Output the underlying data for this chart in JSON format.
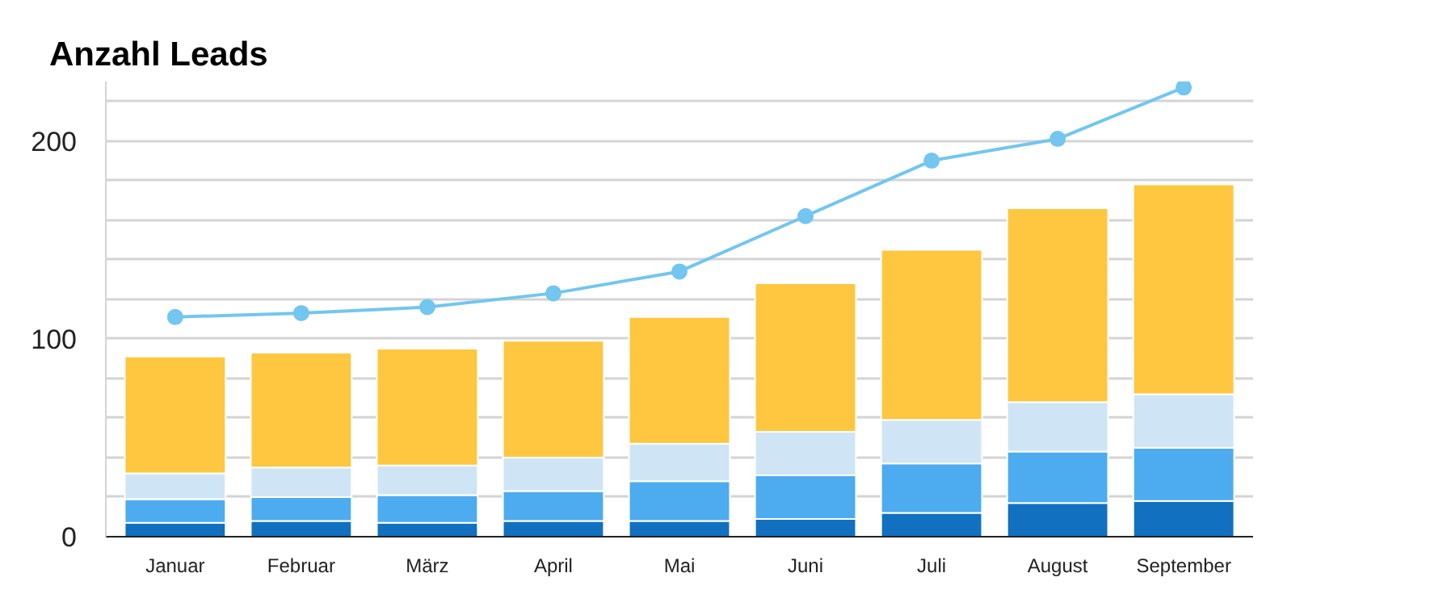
{
  "chart_data": {
    "type": "bar",
    "title": "Anzahl Leads",
    "stacked": true,
    "categories": [
      "Januar",
      "Februar",
      "März",
      "April",
      "Mai",
      "Juni",
      "Juli",
      "August",
      "September"
    ],
    "series": [
      {
        "color": "#1170c0",
        "values": [
          7,
          8,
          7,
          8,
          8,
          9,
          12,
          17,
          18
        ]
      },
      {
        "color": "#4dabf0",
        "values": [
          12,
          12,
          14,
          15,
          20,
          22,
          25,
          26,
          27
        ]
      },
      {
        "color": "#cfe5f5",
        "values": [
          13,
          15,
          15,
          17,
          19,
          22,
          22,
          25,
          27
        ]
      },
      {
        "color": "#ffc640",
        "values": [
          59,
          58,
          59,
          59,
          64,
          75,
          86,
          98,
          106
        ]
      },
      {
        "type": "line",
        "color": "#72c6ef",
        "marker": "circle",
        "values": [
          111,
          113,
          116,
          123,
          134,
          162,
          190,
          201,
          227
        ]
      }
    ],
    "ylim": [
      0,
      230
    ],
    "yticks": [
      0,
      {
        "value": 20,
        "label": null
      },
      {
        "value": 40,
        "label": null
      },
      {
        "value": 60,
        "label": null
      },
      {
        "value": 80,
        "label": null
      },
      100,
      {
        "value": 120,
        "label": null
      },
      {
        "value": 140,
        "label": null
      },
      {
        "value": 160,
        "label": null
      },
      {
        "value": 180,
        "label": null
      },
      200,
      {
        "value": 220,
        "label": null
      }
    ],
    "grid": "y"
  }
}
